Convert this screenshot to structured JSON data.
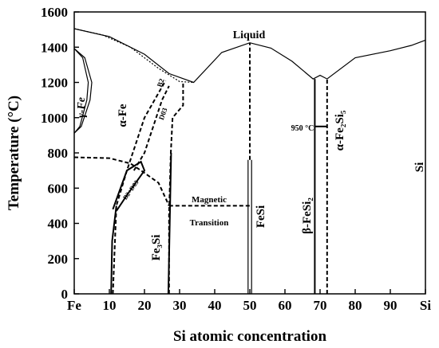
{
  "chart_data": {
    "type": "phase-diagram",
    "xlabel": "Si atomic concentration",
    "ylabel": "Temperature (°C)",
    "xlim": [
      0,
      100
    ],
    "ylim": [
      0,
      1600
    ],
    "x_ticks": [
      {
        "value": 0,
        "label": "Fe"
      },
      {
        "value": 10,
        "label": "10"
      },
      {
        "value": 20,
        "label": "20"
      },
      {
        "value": 30,
        "label": "30"
      },
      {
        "value": 40,
        "label": "40"
      },
      {
        "value": 50,
        "label": "50"
      },
      {
        "value": 60,
        "label": "60"
      },
      {
        "value": 70,
        "label": "70"
      },
      {
        "value": 80,
        "label": "80"
      },
      {
        "value": 90,
        "label": "90"
      },
      {
        "value": 100,
        "label": "Si"
      }
    ],
    "y_ticks": [
      0,
      200,
      400,
      600,
      800,
      1000,
      1200,
      1400,
      1600
    ],
    "liquidus": [
      [
        0,
        1505
      ],
      [
        10,
        1460
      ],
      [
        20,
        1360
      ],
      [
        27,
        1250
      ],
      [
        34,
        1200
      ],
      [
        42,
        1370
      ],
      [
        50,
        1425
      ],
      [
        56,
        1395
      ],
      [
        62,
        1320
      ],
      [
        68,
        1220
      ],
      [
        70,
        1240
      ],
      [
        72,
        1220
      ],
      [
        80,
        1340
      ],
      [
        90,
        1380
      ],
      [
        96,
        1410
      ],
      [
        100,
        1440
      ]
    ],
    "solidus": [
      [
        0,
        1505
      ],
      [
        8,
        1470
      ],
      [
        16,
        1400
      ],
      [
        24,
        1280
      ],
      [
        30,
        1205
      ],
      [
        34,
        1200
      ]
    ],
    "gamma_loop": [
      [
        0,
        1392
      ],
      [
        3,
        1340
      ],
      [
        5,
        1200
      ],
      [
        4.5,
        1100
      ],
      [
        2,
        950
      ],
      [
        0,
        912
      ]
    ],
    "a2_b2_boundary": [
      [
        11,
        0
      ],
      [
        12,
        500
      ],
      [
        15,
        700
      ],
      [
        20,
        1000
      ],
      [
        24,
        1140
      ],
      [
        26,
        1210
      ]
    ],
    "b2_d03_boundary": [
      [
        17,
        700
      ],
      [
        20,
        800
      ],
      [
        25,
        1100
      ],
      [
        27,
        1180
      ]
    ],
    "d03_boundary": [
      [
        27,
        0
      ],
      [
        27,
        450
      ],
      [
        27.5,
        800
      ],
      [
        28,
        1000
      ],
      [
        31,
        1070
      ],
      [
        31,
        1200
      ]
    ],
    "magnetic_boundary": [
      [
        0,
        775
      ],
      [
        10,
        770
      ],
      [
        16,
        740
      ],
      [
        19,
        700
      ],
      [
        24,
        630
      ],
      [
        27,
        500
      ]
    ],
    "magnetic_transition_temp": 500,
    "labels": {
      "liquid": "Liquid",
      "gamma_fe": "γ-Fe",
      "alpha_fe": "α-Fe",
      "b2": "B2",
      "d03": "D03",
      "b2_d03": "B2+D03",
      "fe3si": "Fe₃Si",
      "fesi": "FeSi",
      "beta_fesi2": "β-FeSi₂",
      "alpha_fe2si5": "α-Fe₂Si₅",
      "si": "Si",
      "temp_950": "950 °C",
      "magnetic_line1": "Magnetic",
      "magnetic_line2": "Transition"
    }
  }
}
